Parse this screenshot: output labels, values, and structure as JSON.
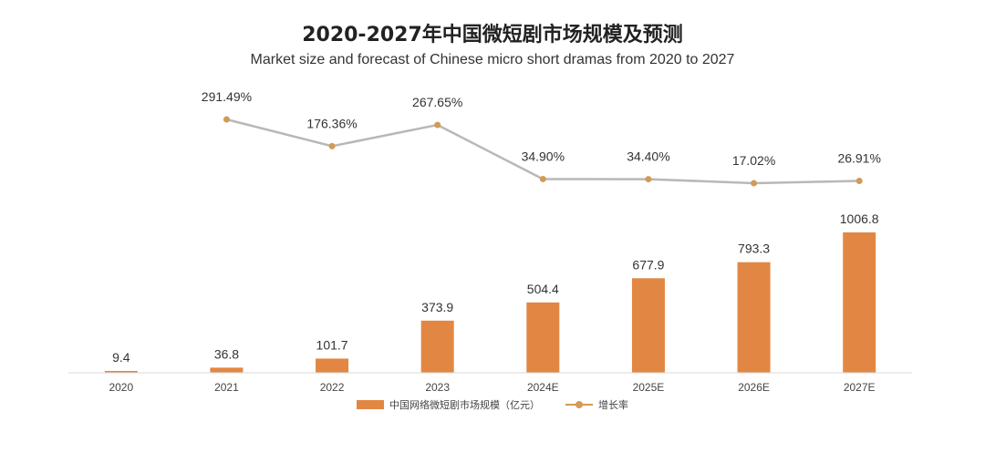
{
  "chart_data": {
    "type": "bar",
    "title": "2020-2027年中国微短剧市场规模及预测",
    "subtitle": "Market size and forecast of Chinese micro short dramas from 2020 to 2027",
    "categories": [
      "2020",
      "2021",
      "2022",
      "2023",
      "2024E",
      "2025E",
      "2026E",
      "2027E"
    ],
    "series": [
      {
        "name": "中国网络微短剧市场规模（亿元）",
        "type": "bar",
        "values": [
          9.4,
          36.8,
          101.7,
          373.9,
          504.4,
          677.9,
          793.3,
          1006.8
        ],
        "labels": [
          "9.4",
          "36.8",
          "101.7",
          "373.9",
          "504.4",
          "677.9",
          "793.3",
          "1006.8"
        ],
        "color": "#E28743"
      },
      {
        "name": "增长率",
        "type": "line",
        "values": [
          null,
          291.49,
          176.36,
          267.65,
          34.9,
          34.4,
          17.02,
          26.91
        ],
        "labels": [
          "",
          "291.49%",
          "176.36%",
          "267.65%",
          "34.90%",
          "34.40%",
          "17.02%",
          "26.91%"
        ],
        "line_color": "#B8B8B8",
        "marker_color": "#D39A55"
      }
    ],
    "ylim": [
      0,
      1080
    ],
    "growth_ylim": [
      0,
      300
    ],
    "grid": false,
    "legend_position": "bottom"
  },
  "colors": {
    "axis": "#D9D9D9",
    "label_text": "#333333",
    "tick_text": "#444444"
  }
}
